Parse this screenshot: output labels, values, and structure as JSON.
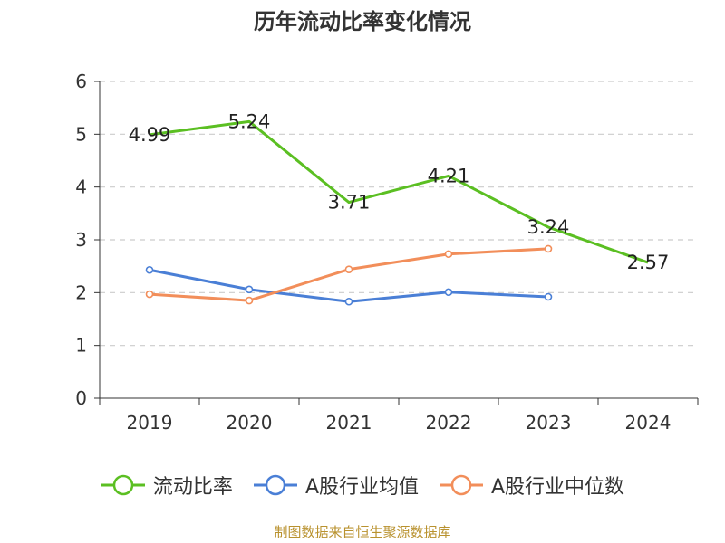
{
  "title": "历年流动比率变化情况",
  "source_note": "制图数据来自恒生聚源数据库",
  "chart_data": {
    "type": "line",
    "title": "历年流动比率变化情况",
    "categories": [
      "2019",
      "2020",
      "2021",
      "2022",
      "2023",
      "2024"
    ],
    "ylim": [
      0,
      6
    ],
    "yticks": [
      0,
      1,
      2,
      3,
      4,
      5,
      6
    ],
    "grid": true,
    "legend_position": "bottom",
    "series": [
      {
        "name": "流动比率",
        "color": "#5bbf22",
        "values": [
          4.99,
          5.24,
          3.71,
          4.21,
          3.24,
          2.57
        ],
        "labels": [
          "4.99",
          "5.24",
          "3.71",
          "4.21",
          "3.24",
          "2.57"
        ]
      },
      {
        "name": "A股行业均值",
        "color": "#4a7fd6",
        "values": [
          2.43,
          2.06,
          1.83,
          2.01,
          1.92,
          null
        ]
      },
      {
        "name": "A股行业中位数",
        "color": "#f28e5a",
        "values": [
          1.97,
          1.85,
          2.44,
          2.73,
          2.83,
          null
        ]
      }
    ]
  }
}
